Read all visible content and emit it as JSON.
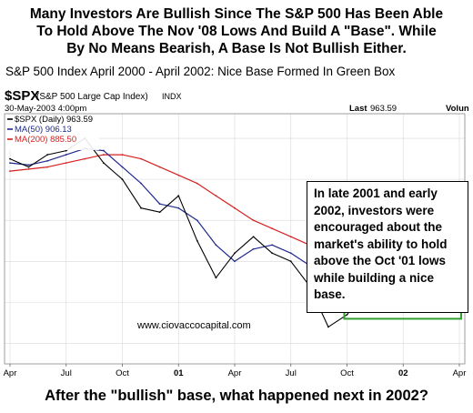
{
  "headline": {
    "line1": "Many Investors Are Bullish Since The S&P 500 Has Been Able",
    "line2": "To Hold Above The Nov '08 Lows And Build A \"Base\".  While",
    "line3": "By No Means Bearish, A Base Is Not Bullish Either."
  },
  "subtitle": "S&P 500 Index April 2000 - April 2002:  Nice Base Formed In Green Box",
  "chart_header": {
    "symbol": "$SPX",
    "description": "(S&P 500 Large Cap Index)",
    "exchange": "INDX",
    "date": "30-May-2003 4:00pm",
    "last_label": "Last",
    "last_value": "963.59",
    "volume_label": "Volun"
  },
  "watermark": "www.ciovaccocapital.com",
  "callout": "In late 2001 and early 2002, investors were encouraged about the market's ability to hold above the Oct '01 lows while building a nice base.",
  "question": "After the \"bullish\" base, what happened next in 2002?",
  "colors": {
    "price": "#000000",
    "ma50": "#1f2a8c",
    "ma200": "#d62020",
    "base_box": "#2fa02f",
    "grid": "#d8d8d8"
  },
  "chart_data": {
    "type": "line",
    "title": "$SPX (S&P 500 Large Cap Index)",
    "x_tick_labels": [
      "Apr",
      "Jul",
      "Oct",
      "01",
      "Apr",
      "Jul",
      "Oct",
      "02",
      "Apr"
    ],
    "legend": [
      {
        "label": "$SPX (Daily)",
        "value": "963.59",
        "color": "#000000"
      },
      {
        "label": "MA(50)",
        "value": "906.13",
        "color": "#1f2a8c"
      },
      {
        "label": "MA(200)",
        "value": "885.50",
        "color": "#d62020"
      }
    ],
    "legend_position": "top-left",
    "grid": true,
    "annotation_box": {
      "label": "base",
      "x_range": [
        "2001-10",
        "2002-04"
      ],
      "color": "#2fa02f"
    },
    "series": [
      {
        "name": "$SPX (Daily)",
        "x": [
          "2000-04",
          "2000-05",
          "2000-06",
          "2000-07",
          "2000-08",
          "2000-09",
          "2000-10",
          "2000-11",
          "2000-12",
          "2001-01",
          "2001-02",
          "2001-03",
          "2001-04",
          "2001-05",
          "2001-06",
          "2001-07",
          "2001-08",
          "2001-09",
          "2001-10",
          "2001-11",
          "2001-12",
          "2002-01",
          "2002-02",
          "2002-03",
          "2002-04"
        ],
        "values": [
          1450,
          1430,
          1460,
          1470,
          1500,
          1440,
          1400,
          1330,
          1320,
          1360,
          1250,
          1160,
          1220,
          1260,
          1220,
          1200,
          1140,
          1040,
          1070,
          1130,
          1150,
          1130,
          1090,
          1150,
          1090
        ]
      },
      {
        "name": "MA(50)",
        "x": [
          "2000-04",
          "2000-05",
          "2000-06",
          "2000-07",
          "2000-08",
          "2000-09",
          "2000-10",
          "2000-11",
          "2000-12",
          "2001-01",
          "2001-02",
          "2001-03",
          "2001-04",
          "2001-05",
          "2001-06",
          "2001-07",
          "2001-08",
          "2001-09",
          "2001-10",
          "2001-11",
          "2001-12",
          "2002-01",
          "2002-02",
          "2002-03",
          "2002-04"
        ],
        "values": [
          1440,
          1435,
          1445,
          1460,
          1475,
          1470,
          1430,
          1390,
          1340,
          1330,
          1300,
          1240,
          1200,
          1230,
          1240,
          1220,
          1190,
          1130,
          1080,
          1090,
          1130,
          1140,
          1120,
          1120,
          1110
        ]
      },
      {
        "name": "MA(200)",
        "x": [
          "2000-04",
          "2000-05",
          "2000-06",
          "2000-07",
          "2000-08",
          "2000-09",
          "2000-10",
          "2000-11",
          "2000-12",
          "2001-01",
          "2001-02",
          "2001-03",
          "2001-04",
          "2001-05",
          "2001-06",
          "2001-07",
          "2001-08",
          "2001-09",
          "2001-10",
          "2001-11",
          "2001-12",
          "2002-01",
          "2002-02",
          "2002-03",
          "2002-04"
        ],
        "values": [
          1420,
          1425,
          1430,
          1440,
          1450,
          1460,
          1460,
          1450,
          1430,
          1410,
          1390,
          1360,
          1330,
          1300,
          1280,
          1260,
          1240,
          1210,
          1180,
          1160,
          1150,
          1145,
          1140,
          1135,
          1130
        ]
      }
    ],
    "ylim": [
      950,
      1560
    ]
  }
}
